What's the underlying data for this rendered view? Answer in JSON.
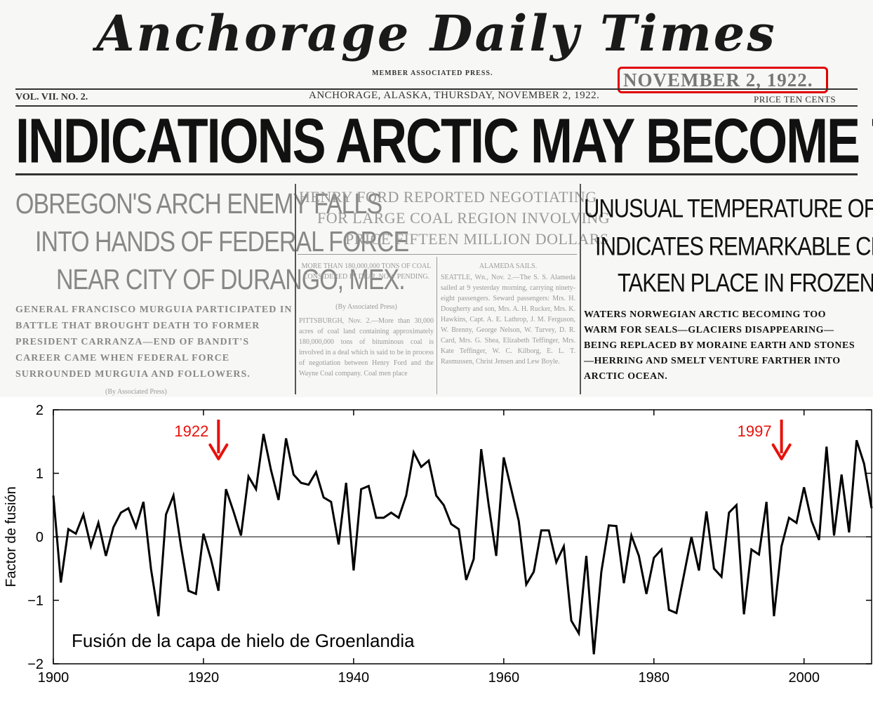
{
  "newspaper": {
    "masthead": "Anchorage Daily Times",
    "member_line": "MEMBER ASSOCIATED PRESS.",
    "date_highlight": "NOVEMBER 2, 1922.",
    "volume": "VOL. VII.  NO. 2.",
    "place_date": "ANCHORAGE, ALASKA, THURSDAY, NOVEMBER 2, 1922.",
    "price": "PRICE TEN CENTS",
    "main_headline": "INDICATIONS ARCTIC MAY BECOME TEMPERATE ZONE",
    "left_deck": [
      "OBREGON'S ARCH ENEMY FALLS",
      "INTO HANDS OF FEDERAL FORCE",
      "NEAR CITY OF DURANGO, MEX."
    ],
    "left_sub": "GENERAL FRANCISCO MURGUIA PARTICIPATED IN BATTLE THAT BROUGHT DEATH TO FORMER PRESIDENT CARRANZA—END OF BANDIT'S CAREER CAME WHEN FEDERAL FORCE SURROUNDED MURGUIA AND FOLLOWERS.",
    "left_credit": "(By Associated Press)",
    "middle_deck": [
      "HENRY FORD REPORTED NEGOTIATING",
      "FOR LARGE COAL REGION INVOLVING",
      "PRICE FIFTEEN MILLION DOLLARS"
    ],
    "middle_left_sub": "MORE THAN 180,000,000 TONS OF COAL CONSIDERED IN DEAL NOW PENDING.",
    "middle_left_credit": "(By Associated Press)",
    "middle_left_body": "PITTSBURGH, Nov. 2.—More than 30,000 acres of coal land containing approximately 180,000,000 tons of bituminous coal is involved in a deal which is said to be in process of negotiation between Henry Ford and the Wayne Coal company. Coal men place",
    "middle_right_sub": "ALAMEDA SAILS.",
    "middle_right_body": "SEATTLE, Wn., Nov. 2.—The S. S. Alameda sailed at 9 yesterday morning, carrying ninety-eight passengers. Seward passengers: Mrs. H. Dougherty and son, Mrs. A. H. Rucker, Mrs. K. Hawkins, Capt. A. E. Lathrop, J. M. Ferguson, W. Brenny, George Nelson, W. Turvey, D. R. Card, Mrs. G. Shea, Elizabeth Teffinger, Mrs. Kate Teffinger, W. C. Kilborg, E. L. T. Rasmussen, Christ Jensen and Lew Boyle.",
    "right_deck": [
      "UNUSUAL TEMPERATURE OF ARCTIC",
      "INDICATES REMARKABLE CHANGE",
      "TAKEN PLACE IN FROZEN ZONE"
    ],
    "right_sub": "WATERS NORWEGIAN ARCTIC BECOMING TOO WARM FOR SEALS—GLACIERS DISAPPEARING—BEING REPLACED BY MORAINE EARTH AND STONES—HERRING AND SMELT VENTURE FARTHER INTO ARCTIC OCEAN."
  },
  "chart_data": {
    "type": "line",
    "title": "Fusión de la capa de hielo de Groenlandia",
    "xlabel": "",
    "ylabel": "Factor de fusión",
    "xlim": [
      1900,
      2009
    ],
    "ylim": [
      -2,
      2
    ],
    "xticks": [
      1900,
      1920,
      1940,
      1960,
      1980,
      2000
    ],
    "yticks": [
      -2,
      -1,
      0,
      1,
      2
    ],
    "ytick_labels": [
      "−2",
      "−1",
      "0",
      "1",
      "2"
    ],
    "zero_line": true,
    "grid": false,
    "line_color": "#000000",
    "annotation_color": "#e8100a",
    "annotations": [
      {
        "label": "1922",
        "x": 1922
      },
      {
        "label": "1997",
        "x": 1997
      }
    ],
    "x": [
      1900,
      1901,
      1902,
      1903,
      1904,
      1905,
      1906,
      1907,
      1908,
      1909,
      1910,
      1911,
      1912,
      1913,
      1914,
      1915,
      1916,
      1917,
      1918,
      1919,
      1920,
      1921,
      1922,
      1923,
      1924,
      1925,
      1926,
      1927,
      1928,
      1929,
      1930,
      1931,
      1932,
      1933,
      1934,
      1935,
      1936,
      1937,
      1938,
      1939,
      1940,
      1941,
      1942,
      1943,
      1944,
      1945,
      1946,
      1947,
      1948,
      1949,
      1950,
      1951,
      1952,
      1953,
      1954,
      1955,
      1956,
      1957,
      1958,
      1959,
      1960,
      1961,
      1962,
      1963,
      1964,
      1965,
      1966,
      1967,
      1968,
      1969,
      1970,
      1971,
      1972,
      1973,
      1974,
      1975,
      1976,
      1977,
      1978,
      1979,
      1980,
      1981,
      1982,
      1983,
      1984,
      1985,
      1986,
      1987,
      1988,
      1989,
      1990,
      1991,
      1992,
      1993,
      1994,
      1995,
      1996,
      1997,
      1998,
      1999,
      2000,
      2001,
      2002,
      2003,
      2004,
      2005,
      2006,
      2007,
      2008,
      2009
    ],
    "values": [
      0.65,
      -0.72,
      0.12,
      0.05,
      0.35,
      -0.15,
      0.22,
      -0.3,
      0.15,
      0.38,
      0.45,
      0.15,
      0.55,
      -0.5,
      -1.25,
      0.35,
      0.65,
      -0.15,
      -0.85,
      -0.9,
      0.05,
      -0.35,
      -0.85,
      0.75,
      0.4,
      0.02,
      0.95,
      0.75,
      1.62,
      1.05,
      0.58,
      1.55,
      0.98,
      0.85,
      0.82,
      1.02,
      0.62,
      0.55,
      -0.12,
      0.85,
      -0.53,
      0.75,
      0.8,
      0.3,
      0.3,
      0.38,
      0.3,
      0.65,
      1.33,
      1.1,
      1.2,
      0.65,
      0.5,
      0.2,
      0.12,
      -0.68,
      -0.35,
      1.38,
      0.5,
      -0.3,
      1.25,
      0.75,
      0.25,
      -0.75,
      -0.55,
      0.1,
      0.1,
      -0.4,
      -0.15,
      -1.32,
      -1.52,
      -0.3,
      -1.85,
      -0.55,
      0.18,
      0.17,
      -0.73,
      0.02,
      -0.3,
      -0.9,
      -0.33,
      -0.2,
      -1.15,
      -1.2,
      -0.6,
      0.0,
      -0.53,
      0.4,
      -0.5,
      -0.63,
      0.38,
      0.5,
      -1.22,
      -0.2,
      -0.28,
      0.55,
      -1.25,
      -0.15,
      0.3,
      0.22,
      0.78,
      0.25,
      -0.05,
      1.42,
      0.02,
      0.98,
      0.07,
      1.52,
      1.15,
      0.45
    ]
  }
}
